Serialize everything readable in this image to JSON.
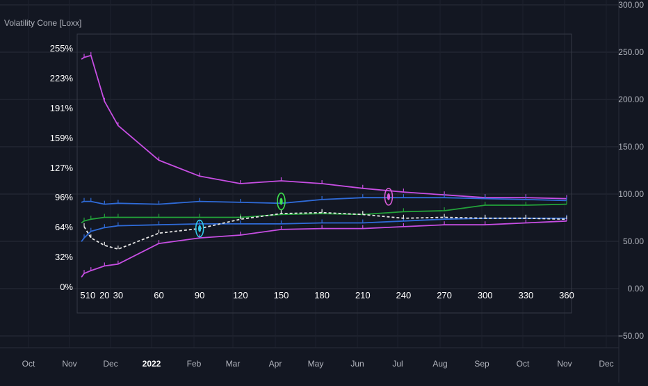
{
  "indicator_title": "Volatility Cone [Loxx]",
  "colors": {
    "background": "#131722",
    "grid": "#2a2e39",
    "panel_border": "#363a45",
    "text": "#b2b5be",
    "white_text": "#ffffff",
    "max": "#c74ee3",
    "high": "#2f6bd8",
    "mean": "#23a33a",
    "low": "#2f6bd8",
    "min": "#c74ee3",
    "current": "#e6e6e6",
    "marker_green": "#3ee14f",
    "marker_cyan": "#32c7e8",
    "marker_magenta": "#d85bd8"
  },
  "price_axis_labels": [
    "300.00",
    "250.00",
    "200.00",
    "150.00",
    "100.00",
    "50.00",
    "0.00",
    "−50.00"
  ],
  "time_axis_labels": [
    "Oct",
    "Nov",
    "Dec",
    "2022",
    "Feb",
    "Mar",
    "Apr",
    "May",
    "Jun",
    "Jul",
    "Aug",
    "Sep",
    "Oct",
    "Nov",
    "Dec"
  ],
  "chart_data": {
    "type": "line",
    "x_label": "",
    "y_label": "",
    "x_tick_labels": [
      "5",
      "10",
      "20",
      "30",
      "60",
      "90",
      "120",
      "150",
      "180",
      "210",
      "240",
      "270",
      "300",
      "330",
      "360"
    ],
    "y_tick_labels": [
      "255%",
      "223%",
      "191%",
      "159%",
      "127%",
      "96%",
      "64%",
      "32%",
      "0%"
    ],
    "ylim": [
      0,
      255
    ],
    "series": [
      {
        "color_key": "max",
        "style": "solid",
        "x": [
          3,
          5,
          10,
          20,
          30,
          60,
          90,
          120,
          150,
          180,
          210,
          240,
          270,
          300,
          330,
          360
        ],
        "y": [
          243,
          245,
          247,
          198,
          172,
          135,
          118,
          110,
          113,
          110,
          105,
          101,
          98,
          95,
          95,
          94
        ]
      },
      {
        "color_key": "high",
        "style": "solid",
        "x": [
          3,
          5,
          10,
          20,
          30,
          60,
          90,
          120,
          150,
          180,
          210,
          240,
          270,
          300,
          330,
          360
        ],
        "y": [
          90,
          91,
          91,
          88,
          89,
          88,
          91,
          90,
          89,
          93,
          95,
          95,
          95,
          94,
          93,
          92
        ]
      },
      {
        "color_key": "mean",
        "style": "solid",
        "x": [
          3,
          5,
          10,
          20,
          30,
          60,
          90,
          120,
          150,
          180,
          210,
          240,
          270,
          300,
          330,
          360
        ],
        "y": [
          68,
          70,
          72,
          74,
          74,
          74,
          74,
          74,
          77,
          78,
          77,
          80,
          81,
          87,
          87,
          88
        ]
      },
      {
        "color_key": "low",
        "style": "solid",
        "x": [
          3,
          5,
          10,
          20,
          30,
          60,
          90,
          120,
          150,
          180,
          210,
          240,
          270,
          300,
          330,
          360
        ],
        "y": [
          48,
          52,
          59,
          63,
          65,
          66,
          67,
          67,
          67,
          68,
          68,
          70,
          72,
          73,
          73,
          73
        ]
      },
      {
        "color_key": "min",
        "style": "solid",
        "x": [
          3,
          5,
          10,
          20,
          30,
          60,
          90,
          120,
          150,
          180,
          210,
          240,
          270,
          300,
          330,
          360
        ],
        "y": [
          10,
          14,
          17,
          22,
          24,
          46,
          52,
          55,
          61,
          62,
          62,
          64,
          66,
          66,
          68,
          70
        ]
      },
      {
        "color_key": "current",
        "style": "dashed",
        "x": [
          5,
          10,
          20,
          30,
          60,
          90,
          120,
          150,
          180,
          210,
          240,
          270,
          300,
          330,
          360
        ],
        "y": [
          64,
          52,
          44,
          40,
          57,
          62,
          72,
          78,
          79,
          77,
          73,
          74,
          73,
          73,
          72
        ]
      }
    ],
    "markers": [
      {
        "x": 90,
        "y": 62,
        "color_key": "marker_cyan"
      },
      {
        "x": 150,
        "y": 91,
        "color_key": "marker_green"
      },
      {
        "x": 229,
        "y": 96,
        "color_key": "marker_magenta"
      }
    ]
  }
}
